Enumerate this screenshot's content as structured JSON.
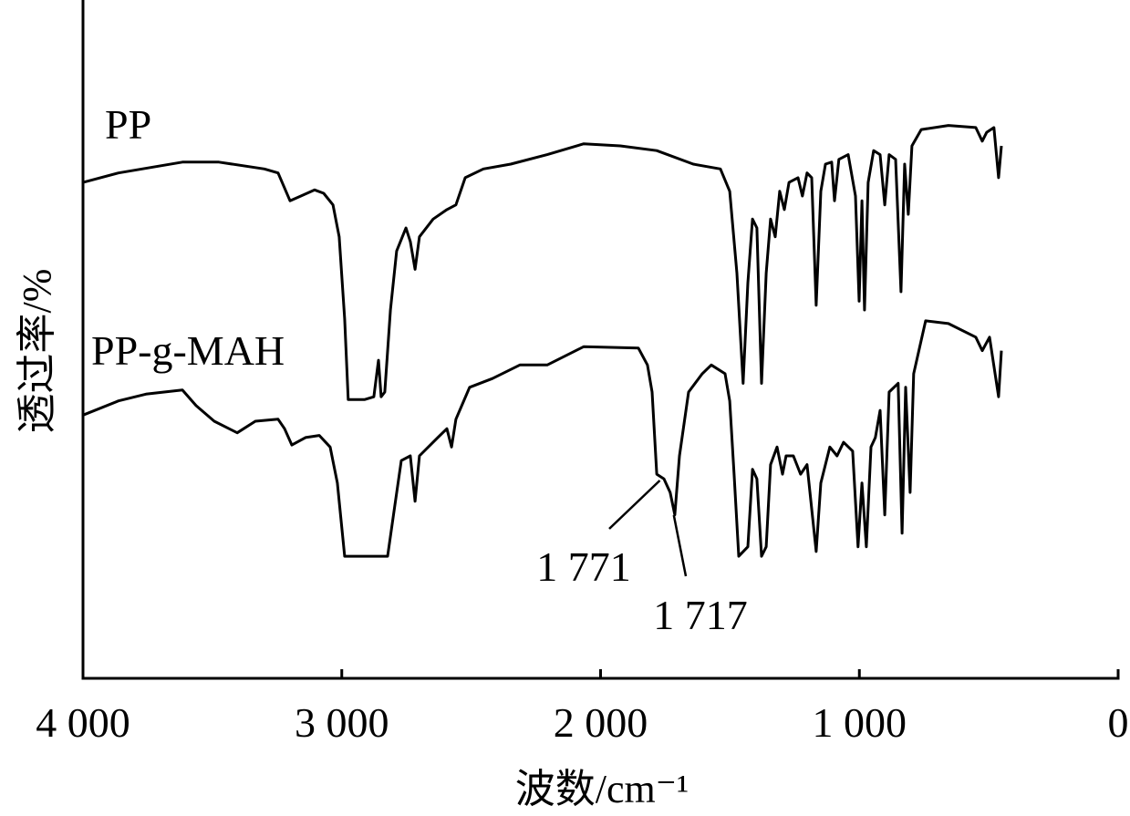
{
  "chart_data": {
    "type": "line",
    "xlabel": "波数/cm⁻¹",
    "ylabel": "透过率/%",
    "xlim": [
      4000,
      0
    ],
    "xticks": [
      {
        "value": 4000,
        "label": "4 000"
      },
      {
        "value": 3000,
        "label": "3 000"
      },
      {
        "value": 2000,
        "label": "2 000"
      },
      {
        "value": 1000,
        "label": "1 000"
      },
      0
    ],
    "ylim": [
      0,
      100
    ],
    "series": [
      {
        "name": "PP",
        "color": "#000000",
        "x": [
          4000,
          3863,
          3616,
          3475,
          3299,
          3246,
          3200,
          3158,
          3105,
          3070,
          3034,
          3010,
          2989,
          2975,
          2911,
          2876,
          2858,
          2848,
          2834,
          2812,
          2788,
          2752,
          2735,
          2717,
          2700,
          2647,
          2594,
          2559,
          2523,
          2453,
          2347,
          2206,
          2065,
          1924,
          1783,
          1642,
          1537,
          1501,
          1473,
          1449,
          1431,
          1413,
          1396,
          1378,
          1360,
          1343,
          1325,
          1308,
          1290,
          1272,
          1237,
          1220,
          1202,
          1184,
          1167,
          1149,
          1131,
          1107,
          1096,
          1079,
          1043,
          1015,
          1001,
          990,
          980,
          966,
          945,
          920,
          902,
          885,
          860,
          839,
          825,
          811,
          797,
          761,
          656,
          550,
          525,
          508,
          480,
          462,
          451
        ],
        "values": [
          73.1,
          74.5,
          76.1,
          76.1,
          75.1,
          74.5,
          70.4,
          71.1,
          72.0,
          71.5,
          69.8,
          65.1,
          53.0,
          41.1,
          41.1,
          41.5,
          46.9,
          41.5,
          42.2,
          54.3,
          63.0,
          66.4,
          64.4,
          60.3,
          65.1,
          67.7,
          69.1,
          69.8,
          73.8,
          75.1,
          75.8,
          77.2,
          78.8,
          78.5,
          77.8,
          75.8,
          75.1,
          71.8,
          59.7,
          43.5,
          58.3,
          67.7,
          66.4,
          43.5,
          59.7,
          67.7,
          65.1,
          71.8,
          69.1,
          73.1,
          73.8,
          71.1,
          74.5,
          73.8,
          55.0,
          71.8,
          75.8,
          76.1,
          70.4,
          76.5,
          77.2,
          71.1,
          55.6,
          70.4,
          54.3,
          73.1,
          77.8,
          77.2,
          69.8,
          77.2,
          76.5,
          57.0,
          75.8,
          68.4,
          78.5,
          80.9,
          81.5,
          81.2,
          79.2,
          80.5,
          81.2,
          73.8,
          78.5
        ]
      },
      {
        "name": "PP-g-MAH",
        "color": "#000000",
        "x": [
          4000,
          3863,
          3757,
          3616,
          3563,
          3493,
          3404,
          3334,
          3246,
          3221,
          3193,
          3140,
          3087,
          3045,
          3017,
          2989,
          2823,
          2798,
          2770,
          2735,
          2717,
          2700,
          2629,
          2594,
          2576,
          2559,
          2506,
          2418,
          2312,
          2206,
          2065,
          1854,
          1819,
          1801,
          1783,
          1755,
          1731,
          1713,
          1695,
          1660,
          1607,
          1572,
          1519,
          1501,
          1484,
          1466,
          1431,
          1413,
          1396,
          1378,
          1360,
          1343,
          1318,
          1297,
          1283,
          1255,
          1227,
          1202,
          1167,
          1149,
          1114,
          1086,
          1061,
          1026,
          1005,
          990,
          973,
          955,
          938,
          920,
          902,
          885,
          850,
          835,
          821,
          804,
          790,
          744,
          656,
          550,
          525,
          497,
          462,
          451
        ],
        "values": [
          38.8,
          40.9,
          41.9,
          42.5,
          40.2,
          37.9,
          36.2,
          37.9,
          38.2,
          36.8,
          34.4,
          35.5,
          35.8,
          34.1,
          28.8,
          18.0,
          18.0,
          24.7,
          32.1,
          32.8,
          26.1,
          32.8,
          35.5,
          36.8,
          34.1,
          38.2,
          42.9,
          44.2,
          46.2,
          46.2,
          48.9,
          48.7,
          46.2,
          42.2,
          30.1,
          29.4,
          27.4,
          24.1,
          32.8,
          42.2,
          44.9,
          46.2,
          44.9,
          40.9,
          30.1,
          18.0,
          19.4,
          30.8,
          29.4,
          18.0,
          19.4,
          31.5,
          34.1,
          30.1,
          32.8,
          32.8,
          30.1,
          31.5,
          18.7,
          28.8,
          34.1,
          32.8,
          34.8,
          33.5,
          19.4,
          28.8,
          19.4,
          34.1,
          35.5,
          39.5,
          24.1,
          42.2,
          43.5,
          21.4,
          42.9,
          27.4,
          44.9,
          52.7,
          52.3,
          50.3,
          48.3,
          50.3,
          41.5,
          48.3
        ]
      }
    ],
    "annotations": [
      {
        "label": "1 771",
        "value": 1771
      },
      {
        "label": "1 717",
        "value": 1717
      }
    ]
  }
}
